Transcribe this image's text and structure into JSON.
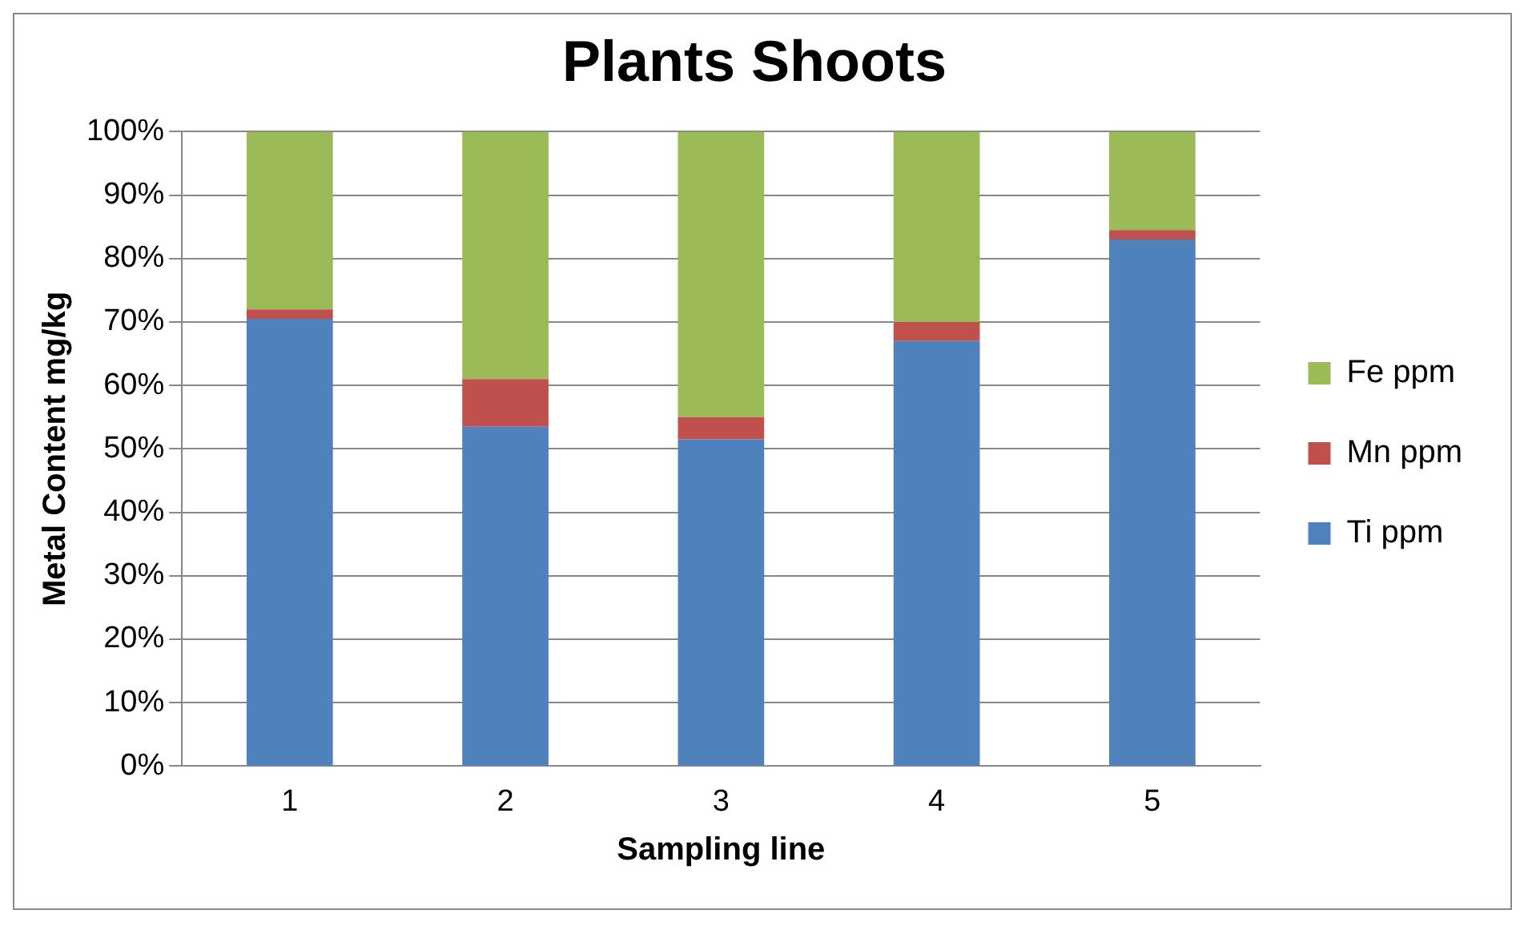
{
  "chart_data": {
    "type": "bar",
    "title": "Plants Shoots",
    "xlabel": "Sampling line",
    "ylabel": "Metal Content mg/kg",
    "categories": [
      "1",
      "2",
      "3",
      "4",
      "5"
    ],
    "stacked": true,
    "series": [
      {
        "name": "Ti ppm",
        "color": "#4f81bd",
        "values": [
          70.5,
          53.5,
          51.5,
          67,
          83
        ]
      },
      {
        "name": "Mn ppm",
        "color": "#c0504d",
        "values": [
          1.5,
          7.5,
          3.5,
          3,
          1.5
        ]
      },
      {
        "name": "Fe ppm",
        "color": "#9bbb59",
        "values": [
          28,
          39,
          45,
          30,
          15.5
        ]
      }
    ],
    "ylim": [
      0,
      100
    ],
    "yticks": [
      {
        "value": 0,
        "label": "0%"
      },
      {
        "value": 10,
        "label": "10%"
      },
      {
        "value": 20,
        "label": "20%"
      },
      {
        "value": 30,
        "label": "30%"
      },
      {
        "value": 40,
        "label": "40%"
      },
      {
        "value": 50,
        "label": "50%"
      },
      {
        "value": 60,
        "label": "60%"
      },
      {
        "value": 70,
        "label": "70%"
      },
      {
        "value": 80,
        "label": "80%"
      },
      {
        "value": 90,
        "label": "90%"
      },
      {
        "value": 100,
        "label": "100%"
      }
    ],
    "grid": "y",
    "legend": "right"
  }
}
